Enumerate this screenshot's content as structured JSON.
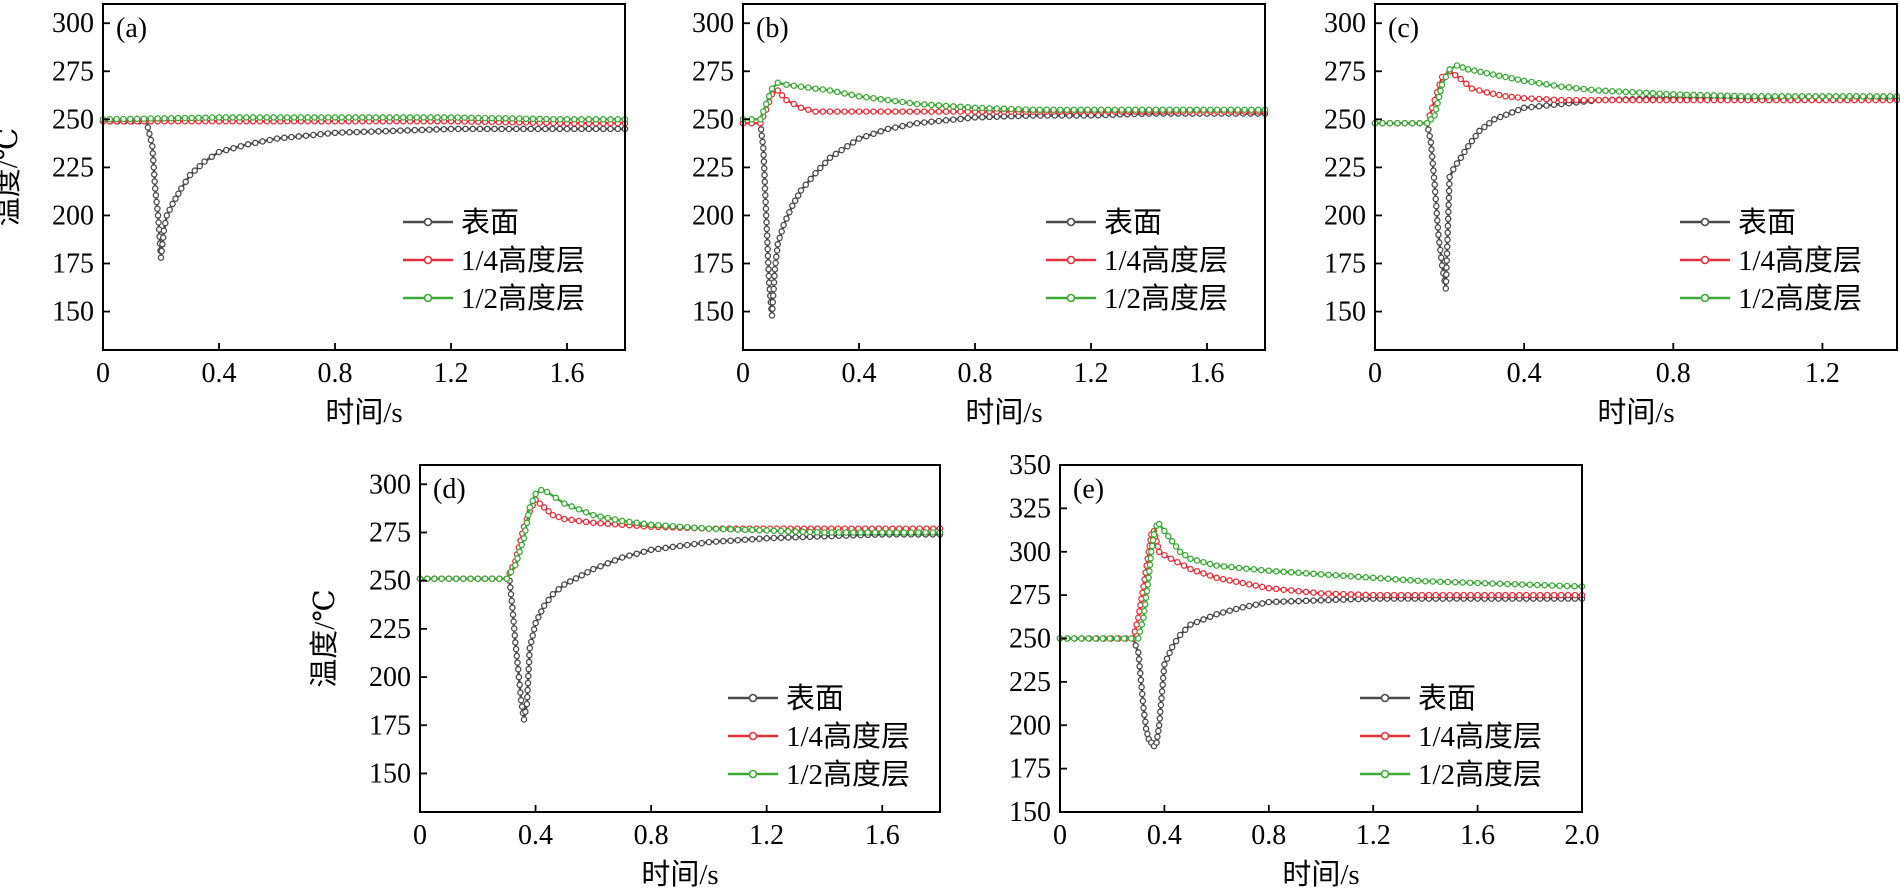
{
  "colors": {
    "surface": "#4a4a4a",
    "quarter": "#e8303a",
    "half": "#3aaa35"
  },
  "chart_data": [
    {
      "id": "a",
      "panel_label": "(a)",
      "type": "line",
      "xlabel": "时间/s",
      "ylabel": "温度/℃",
      "xlim": [
        0,
        1.8
      ],
      "ylim": [
        130,
        310
      ],
      "xticks": [
        "0",
        "0.4",
        "0.8",
        "1.2",
        "1.6"
      ],
      "xtick_values": [
        0,
        0.4,
        0.8,
        1.2,
        1.6
      ],
      "yticks": [
        "150",
        "175",
        "200",
        "225",
        "250",
        "275",
        "300"
      ],
      "ytick_values": [
        150,
        175,
        200,
        225,
        250,
        275,
        300
      ],
      "legend": [
        "表面",
        "1/4高度层",
        "1/2高度层"
      ],
      "legend_position": "lower-right",
      "series": [
        {
          "name": "表面",
          "color_key": "surface",
          "x": [
            0,
            0.15,
            0.17,
            0.18,
            0.19,
            0.2,
            0.21,
            0.22,
            0.24,
            0.27,
            0.3,
            0.35,
            0.4,
            0.5,
            0.6,
            0.8,
            1.0,
            1.2,
            1.4,
            1.6,
            1.8
          ],
          "y": [
            249,
            249,
            236,
            214,
            200,
            178,
            192,
            200,
            206,
            214,
            221,
            228,
            233,
            237,
            240,
            243,
            244,
            245,
            245,
            245,
            245
          ]
        },
        {
          "name": "1/4高度层",
          "color_key": "quarter",
          "x": [
            0,
            0.4,
            0.8,
            1.2,
            1.6,
            1.8
          ],
          "y": [
            249,
            249,
            249,
            249,
            248,
            248
          ]
        },
        {
          "name": "1/2高度层",
          "color_key": "half",
          "x": [
            0,
            0.4,
            0.8,
            1.2,
            1.6,
            1.8
          ],
          "y": [
            250,
            251,
            251,
            251,
            250,
            250
          ]
        }
      ]
    },
    {
      "id": "b",
      "panel_label": "(b)",
      "type": "line",
      "xlabel": "时间/s",
      "ylabel": "",
      "xlim": [
        0,
        1.8
      ],
      "ylim": [
        130,
        310
      ],
      "xticks": [
        "0",
        "0.4",
        "0.8",
        "1.2",
        "1.6"
      ],
      "xtick_values": [
        0,
        0.4,
        0.8,
        1.2,
        1.6
      ],
      "yticks": [
        "150",
        "175",
        "200",
        "225",
        "250",
        "275",
        "300"
      ],
      "ytick_values": [
        150,
        175,
        200,
        225,
        250,
        275,
        300
      ],
      "legend": [
        "表面",
        "1/4高度层",
        "1/2高度层"
      ],
      "legend_position": "lower-right",
      "series": [
        {
          "name": "表面",
          "color_key": "surface",
          "x": [
            0,
            0.06,
            0.07,
            0.08,
            0.09,
            0.1,
            0.11,
            0.12,
            0.14,
            0.17,
            0.2,
            0.25,
            0.3,
            0.4,
            0.5,
            0.6,
            0.8,
            1.0,
            1.2,
            1.4,
            1.6,
            1.8
          ],
          "y": [
            248,
            248,
            235,
            200,
            165,
            148,
            172,
            185,
            195,
            205,
            213,
            222,
            230,
            240,
            245,
            248,
            251,
            252,
            252,
            253,
            253,
            253
          ]
        },
        {
          "name": "1/4高度层",
          "color_key": "quarter",
          "x": [
            0,
            0.06,
            0.08,
            0.1,
            0.12,
            0.15,
            0.2,
            0.25,
            0.3,
            0.4,
            0.6,
            0.8,
            1.0,
            1.4,
            1.8
          ],
          "y": [
            248,
            248,
            255,
            263,
            265,
            260,
            256,
            254,
            254,
            254,
            254,
            254,
            254,
            254,
            254
          ]
        },
        {
          "name": "1/2高度层",
          "color_key": "half",
          "x": [
            0,
            0.06,
            0.08,
            0.1,
            0.12,
            0.15,
            0.2,
            0.3,
            0.4,
            0.5,
            0.6,
            0.8,
            1.0,
            1.4,
            1.8
          ],
          "y": [
            250,
            250,
            258,
            266,
            269,
            268,
            267,
            265,
            262,
            260,
            258,
            256,
            255,
            255,
            255
          ]
        }
      ]
    },
    {
      "id": "c",
      "panel_label": "(c)",
      "type": "line",
      "xlabel": "时间/s",
      "ylabel": "",
      "xlim": [
        0,
        1.4
      ],
      "ylim": [
        130,
        310
      ],
      "xticks": [
        "0",
        "0.4",
        "0.8",
        "1.2"
      ],
      "xtick_values": [
        0,
        0.4,
        0.8,
        1.2
      ],
      "yticks": [
        "150",
        "175",
        "200",
        "225",
        "250",
        "275",
        "300"
      ],
      "ytick_values": [
        150,
        175,
        200,
        225,
        250,
        275,
        300
      ],
      "legend": [
        "表面",
        "1/4高度层",
        "1/2高度层"
      ],
      "legend_position": "lower-right",
      "series": [
        {
          "name": "表面",
          "color_key": "surface",
          "x": [
            0,
            0.14,
            0.15,
            0.16,
            0.17,
            0.18,
            0.19,
            0.2,
            0.21,
            0.23,
            0.25,
            0.28,
            0.32,
            0.4,
            0.5,
            0.6,
            0.8,
            1.0,
            1.2,
            1.4
          ],
          "y": [
            248,
            248,
            238,
            216,
            190,
            174,
            162,
            220,
            224,
            230,
            236,
            244,
            250,
            256,
            258,
            260,
            261,
            261,
            261,
            261
          ]
        },
        {
          "name": "1/4高度层",
          "color_key": "quarter",
          "x": [
            0,
            0.14,
            0.16,
            0.18,
            0.2,
            0.23,
            0.26,
            0.3,
            0.35,
            0.4,
            0.5,
            0.6,
            0.8,
            1.0,
            1.4
          ],
          "y": [
            248,
            248,
            260,
            272,
            275,
            271,
            266,
            264,
            262,
            261,
            260,
            260,
            260,
            260,
            260
          ]
        },
        {
          "name": "1/2高度层",
          "color_key": "half",
          "x": [
            0,
            0.14,
            0.16,
            0.18,
            0.2,
            0.22,
            0.25,
            0.3,
            0.35,
            0.4,
            0.5,
            0.6,
            0.8,
            1.0,
            1.2,
            1.4
          ],
          "y": [
            248,
            248,
            252,
            268,
            276,
            278,
            276,
            274,
            272,
            270,
            267,
            265,
            263,
            262,
            262,
            262
          ]
        }
      ]
    },
    {
      "id": "d",
      "panel_label": "(d)",
      "type": "line",
      "xlabel": "时间/s",
      "ylabel": "温度/℃",
      "xlim": [
        0,
        1.8
      ],
      "ylim": [
        130,
        310
      ],
      "xticks": [
        "0",
        "0.4",
        "0.8",
        "1.2",
        "1.6"
      ],
      "xtick_values": [
        0,
        0.4,
        0.8,
        1.2,
        1.6
      ],
      "yticks": [
        "150",
        "175",
        "200",
        "225",
        "250",
        "275",
        "300"
      ],
      "ytick_values": [
        150,
        175,
        200,
        225,
        250,
        275,
        300
      ],
      "legend": [
        "表面",
        "1/4高度层",
        "1/2高度层"
      ],
      "legend_position": "lower-right",
      "series": [
        {
          "name": "表面",
          "color_key": "surface",
          "x": [
            0,
            0.3,
            0.31,
            0.32,
            0.33,
            0.34,
            0.35,
            0.36,
            0.37,
            0.38,
            0.4,
            0.43,
            0.46,
            0.5,
            0.6,
            0.7,
            0.8,
            1.0,
            1.2,
            1.4,
            1.6,
            1.8
          ],
          "y": [
            251,
            251,
            250,
            236,
            218,
            204,
            188,
            178,
            186,
            215,
            228,
            237,
            243,
            248,
            256,
            262,
            266,
            270,
            272,
            273,
            274,
            274
          ]
        },
        {
          "name": "1/4高度层",
          "color_key": "quarter",
          "x": [
            0,
            0.3,
            0.33,
            0.36,
            0.38,
            0.4,
            0.43,
            0.46,
            0.5,
            0.6,
            0.7,
            0.8,
            1.0,
            1.4,
            1.8
          ],
          "y": [
            251,
            251,
            260,
            278,
            286,
            292,
            288,
            284,
            282,
            280,
            279,
            278,
            277,
            277,
            277
          ]
        },
        {
          "name": "1/2高度层",
          "color_key": "half",
          "x": [
            0,
            0.3,
            0.33,
            0.36,
            0.38,
            0.4,
            0.42,
            0.44,
            0.47,
            0.5,
            0.6,
            0.7,
            0.8,
            1.0,
            1.2,
            1.4,
            1.6,
            1.8
          ],
          "y": [
            251,
            251,
            258,
            272,
            288,
            295,
            297,
            296,
            293,
            290,
            284,
            281,
            279,
            277,
            276,
            275,
            275,
            275
          ]
        }
      ]
    },
    {
      "id": "e",
      "panel_label": "(e)",
      "type": "line",
      "xlabel": "时间/s",
      "ylabel": "",
      "xlim": [
        0,
        2.0
      ],
      "ylim": [
        150,
        350
      ],
      "xticks": [
        "0",
        "0.4",
        "0.8",
        "1.2",
        "1.6",
        "2.0"
      ],
      "xtick_values": [
        0,
        0.4,
        0.8,
        1.2,
        1.6,
        2.0
      ],
      "yticks": [
        "150",
        "175",
        "200",
        "225",
        "250",
        "275",
        "300",
        "325",
        "350"
      ],
      "ytick_values": [
        150,
        175,
        200,
        225,
        250,
        275,
        300,
        325,
        350
      ],
      "legend": [
        "表面",
        "1/4高度层",
        "1/2高度层"
      ],
      "legend_position": "lower-right",
      "series": [
        {
          "name": "表面",
          "color_key": "surface",
          "x": [
            0,
            0.28,
            0.3,
            0.31,
            0.32,
            0.33,
            0.34,
            0.35,
            0.36,
            0.37,
            0.38,
            0.4,
            0.43,
            0.46,
            0.5,
            0.6,
            0.7,
            0.8,
            1.0,
            1.2,
            1.6,
            2.0
          ],
          "y": [
            250,
            250,
            242,
            226,
            210,
            198,
            192,
            190,
            188,
            190,
            200,
            235,
            245,
            252,
            258,
            264,
            268,
            271,
            272,
            273,
            273,
            273
          ]
        },
        {
          "name": "1/4高度层",
          "color_key": "quarter",
          "x": [
            0,
            0.28,
            0.3,
            0.32,
            0.34,
            0.35,
            0.36,
            0.37,
            0.38,
            0.4,
            0.45,
            0.5,
            0.6,
            0.8,
            1.0,
            1.2,
            1.6,
            2.0
          ],
          "y": [
            250,
            250,
            262,
            280,
            300,
            310,
            312,
            306,
            300,
            298,
            294,
            290,
            285,
            279,
            276,
            275,
            275,
            275
          ]
        },
        {
          "name": "1/2高度层",
          "color_key": "half",
          "x": [
            0,
            0.3,
            0.32,
            0.34,
            0.35,
            0.36,
            0.37,
            0.38,
            0.4,
            0.43,
            0.46,
            0.5,
            0.6,
            0.8,
            1.0,
            1.2,
            1.4,
            1.6,
            1.8,
            2.0
          ],
          "y": [
            250,
            250,
            262,
            285,
            300,
            310,
            315,
            316,
            312,
            306,
            300,
            296,
            292,
            289,
            287,
            285,
            283,
            282,
            281,
            280
          ]
        }
      ]
    }
  ]
}
